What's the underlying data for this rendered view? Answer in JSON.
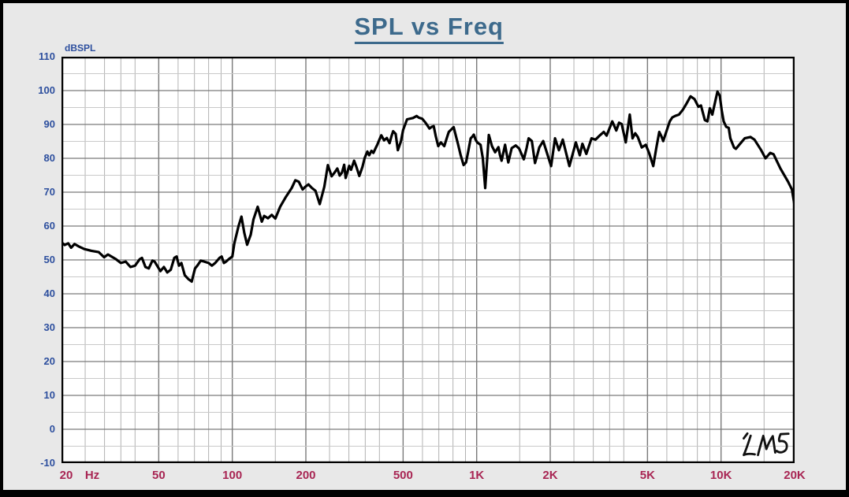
{
  "window": {
    "app": "LMS frequency response plot"
  },
  "colors": {
    "page_bg": "#e8e8e8",
    "plot_bg": "#ffffff",
    "frame": "#000000",
    "title_text": "#3d6a8c",
    "y_axis_text": "#2d4f9e",
    "x_axis_text": "#a82553",
    "grid_minor_v": "#b2b2b2",
    "grid_minor_h": "#c9c9c9",
    "grid_major": "#7a7a7a",
    "curve": "#000000",
    "watermark": "#111111"
  },
  "chart_data": {
    "type": "line",
    "title": "SPL vs Freq",
    "ylabel": "dBSPL",
    "x_unit": "Hz",
    "xscale": "log",
    "xlim": [
      20,
      20000
    ],
    "ylim": [
      -10,
      110
    ],
    "grid": true,
    "y_ticks": [
      110,
      100,
      90,
      80,
      70,
      60,
      50,
      40,
      30,
      20,
      10,
      0,
      -10
    ],
    "x_ticks": [
      {
        "f": 20,
        "label": "20"
      },
      {
        "f": 50,
        "label": "50"
      },
      {
        "f": 100,
        "label": "100"
      },
      {
        "f": 200,
        "label": "200"
      },
      {
        "f": 500,
        "label": "500"
      },
      {
        "f": 1000,
        "label": "1K"
      },
      {
        "f": 2000,
        "label": "2K"
      },
      {
        "f": 5000,
        "label": "5K"
      },
      {
        "f": 10000,
        "label": "10K"
      },
      {
        "f": 20000,
        "label": "20K"
      }
    ],
    "minor_grid_multipliers_per_decade": [
      1,
      1.5,
      2,
      2.5,
      3,
      3.5,
      4,
      5,
      6,
      7,
      8,
      9
    ],
    "watermark": "LMS",
    "series": [
      {
        "name": "SPL",
        "color": "#000000",
        "points": [
          [
            20,
            55.2
          ],
          [
            20.6,
            54.4
          ],
          [
            21.3,
            54.9
          ],
          [
            21.9,
            53.6
          ],
          [
            22.6,
            54.7
          ],
          [
            23.5,
            54.0
          ],
          [
            24.8,
            53.2
          ],
          [
            26.5,
            52.7
          ],
          [
            28.4,
            52.3
          ],
          [
            29.9,
            50.8
          ],
          [
            31,
            51.6
          ],
          [
            33.3,
            50.3
          ],
          [
            35,
            49.1
          ],
          [
            36.6,
            49.5
          ],
          [
            38.3,
            47.9
          ],
          [
            40,
            48.3
          ],
          [
            41.8,
            50.2
          ],
          [
            42.7,
            50.6
          ],
          [
            44.1,
            47.9
          ],
          [
            45.5,
            47.5
          ],
          [
            47.1,
            49.8
          ],
          [
            48.1,
            49.5
          ],
          [
            50.8,
            46.7
          ],
          [
            52.5,
            47.9
          ],
          [
            54.2,
            46.3
          ],
          [
            56,
            47.1
          ],
          [
            57.9,
            50.6
          ],
          [
            59.2,
            51.0
          ],
          [
            60.5,
            48.3
          ],
          [
            61.9,
            49.1
          ],
          [
            63.9,
            45.5
          ],
          [
            66,
            44.4
          ],
          [
            68.2,
            43.6
          ],
          [
            70.4,
            47.5
          ],
          [
            71.9,
            48.3
          ],
          [
            74.3,
            49.8
          ],
          [
            76.7,
            49.5
          ],
          [
            80,
            49.1
          ],
          [
            82.5,
            48.3
          ],
          [
            85.1,
            49.1
          ],
          [
            88.7,
            50.6
          ],
          [
            90.5,
            51.0
          ],
          [
            92.4,
            49.1
          ],
          [
            94.3,
            49.5
          ],
          [
            97,
            50.3
          ],
          [
            100,
            51.0
          ],
          [
            102,
            54.9
          ],
          [
            106,
            59.9
          ],
          [
            109,
            62.8
          ],
          [
            112,
            58.0
          ],
          [
            115,
            54.5
          ],
          [
            119,
            57.5
          ],
          [
            122,
            61.9
          ],
          [
            127,
            65.7
          ],
          [
            132,
            61.3
          ],
          [
            135,
            63.0
          ],
          [
            140,
            62.3
          ],
          [
            145,
            63.3
          ],
          [
            150,
            62.2
          ],
          [
            157,
            65.7
          ],
          [
            165,
            68.4
          ],
          [
            175,
            71.2
          ],
          [
            181,
            73.5
          ],
          [
            187,
            73.1
          ],
          [
            194,
            70.8
          ],
          [
            199,
            71.6
          ],
          [
            205,
            72.3
          ],
          [
            212,
            71.2
          ],
          [
            219,
            70.4
          ],
          [
            228,
            66.5
          ],
          [
            238,
            71.6
          ],
          [
            246,
            78.0
          ],
          [
            255,
            74.7
          ],
          [
            262,
            75.8
          ],
          [
            269,
            77.0
          ],
          [
            275,
            74.9
          ],
          [
            281,
            75.8
          ],
          [
            287,
            78.1
          ],
          [
            291,
            74.2
          ],
          [
            301,
            77.8
          ],
          [
            306,
            76.6
          ],
          [
            315,
            79.3
          ],
          [
            322,
            77.5
          ],
          [
            331,
            74.8
          ],
          [
            341,
            77.5
          ],
          [
            348,
            80.1
          ],
          [
            357,
            82.0
          ],
          [
            363,
            80.9
          ],
          [
            371,
            82.2
          ],
          [
            378,
            81.6
          ],
          [
            387,
            83.2
          ],
          [
            392,
            84.0
          ],
          [
            400,
            85.5
          ],
          [
            407,
            86.8
          ],
          [
            418,
            85.3
          ],
          [
            429,
            86.0
          ],
          [
            440,
            84.5
          ],
          [
            448,
            86.5
          ],
          [
            455,
            88.0
          ],
          [
            466,
            87.2
          ],
          [
            476,
            82.4
          ],
          [
            490,
            85.0
          ],
          [
            500,
            88.4
          ],
          [
            519,
            91.5
          ],
          [
            549,
            91.9
          ],
          [
            568,
            92.5
          ],
          [
            580,
            92.0
          ],
          [
            598,
            91.7
          ],
          [
            615,
            90.7
          ],
          [
            630,
            89.6
          ],
          [
            641,
            88.8
          ],
          [
            655,
            89.3
          ],
          [
            667,
            89.5
          ],
          [
            680,
            86.5
          ],
          [
            696,
            83.6
          ],
          [
            714,
            84.7
          ],
          [
            726,
            84.1
          ],
          [
            737,
            83.6
          ],
          [
            755,
            86.0
          ],
          [
            769,
            87.8
          ],
          [
            790,
            88.6
          ],
          [
            805,
            89.2
          ],
          [
            820,
            86.9
          ],
          [
            838,
            84.3
          ],
          [
            860,
            80.9
          ],
          [
            884,
            78.0
          ],
          [
            905,
            78.8
          ],
          [
            925,
            82.3
          ],
          [
            945,
            85.9
          ],
          [
            960,
            86.4
          ],
          [
            973,
            87.0
          ],
          [
            990,
            85.5
          ],
          [
            1005,
            84.7
          ],
          [
            1037,
            84.0
          ],
          [
            1060,
            80.0
          ],
          [
            1084,
            71.2
          ],
          [
            1121,
            86.9
          ],
          [
            1155,
            83.6
          ],
          [
            1190,
            81.8
          ],
          [
            1228,
            83.3
          ],
          [
            1245,
            81.0
          ],
          [
            1265,
            79.3
          ],
          [
            1307,
            84.0
          ],
          [
            1325,
            81.5
          ],
          [
            1347,
            78.8
          ],
          [
            1391,
            83.0
          ],
          [
            1445,
            83.8
          ],
          [
            1492,
            82.9
          ],
          [
            1520,
            81.5
          ],
          [
            1559,
            79.7
          ],
          [
            1600,
            83.0
          ],
          [
            1632,
            85.9
          ],
          [
            1682,
            85.1
          ],
          [
            1710,
            81.5
          ],
          [
            1733,
            78.6
          ],
          [
            1770,
            81.0
          ],
          [
            1804,
            83.2
          ],
          [
            1872,
            85.1
          ],
          [
            2017,
            77.7
          ],
          [
            2092,
            85.9
          ],
          [
            2170,
            82.4
          ],
          [
            2251,
            85.5
          ],
          [
            2395,
            77.7
          ],
          [
            2546,
            84.7
          ],
          [
            2642,
            80.9
          ],
          [
            2708,
            84.3
          ],
          [
            2810,
            81.3
          ],
          [
            2952,
            85.9
          ],
          [
            3064,
            85.5
          ],
          [
            3183,
            86.7
          ],
          [
            3312,
            87.8
          ],
          [
            3402,
            86.7
          ],
          [
            3588,
            90.9
          ],
          [
            3728,
            88.2
          ],
          [
            3825,
            90.5
          ],
          [
            3923,
            90.1
          ],
          [
            4075,
            84.7
          ],
          [
            4233,
            92.9
          ],
          [
            4343,
            85.9
          ],
          [
            4453,
            87.4
          ],
          [
            4566,
            86.3
          ],
          [
            4738,
            83.2
          ],
          [
            4920,
            84.0
          ],
          [
            5080,
            81.5
          ],
          [
            5280,
            77.7
          ],
          [
            5430,
            83.0
          ],
          [
            5588,
            87.8
          ],
          [
            5700,
            86.5
          ],
          [
            5797,
            85.1
          ],
          [
            6168,
            90.9
          ],
          [
            6320,
            92.1
          ],
          [
            6483,
            92.5
          ],
          [
            6729,
            92.9
          ],
          [
            6984,
            94.4
          ],
          [
            7200,
            96.0
          ],
          [
            7502,
            98.3
          ],
          [
            7786,
            97.5
          ],
          [
            8080,
            95.2
          ],
          [
            8278,
            95.6
          ],
          [
            8585,
            91.3
          ],
          [
            8794,
            90.9
          ],
          [
            9003,
            94.8
          ],
          [
            9213,
            92.9
          ],
          [
            9664,
            99.7
          ],
          [
            9880,
            98.5
          ],
          [
            10061,
            94.2
          ],
          [
            10248,
            90.9
          ],
          [
            10499,
            89.3
          ],
          [
            10747,
            89.0
          ],
          [
            10920,
            85.9
          ],
          [
            11300,
            83.2
          ],
          [
            11500,
            82.8
          ],
          [
            12100,
            84.7
          ],
          [
            12500,
            85.9
          ],
          [
            13200,
            86.3
          ],
          [
            13700,
            85.5
          ],
          [
            14600,
            82.4
          ],
          [
            15200,
            80.0
          ],
          [
            15900,
            81.6
          ],
          [
            16400,
            81.2
          ],
          [
            17500,
            77.0
          ],
          [
            18800,
            73.1
          ],
          [
            19500,
            70.8
          ],
          [
            20000,
            66.0
          ]
        ]
      }
    ]
  }
}
